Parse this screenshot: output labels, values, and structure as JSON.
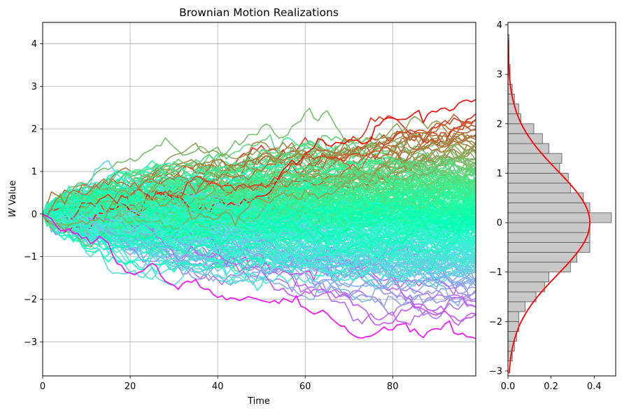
{
  "chart_data": [
    {
      "type": "line",
      "title": "Brownian Motion Realizations",
      "xlabel": "Time",
      "ylabel_italic": "W",
      "ylabel_rest": " Value",
      "xlim": [
        0,
        99
      ],
      "ylim": [
        -3.8,
        4.5
      ],
      "xticks": [
        0,
        20,
        40,
        60,
        80
      ],
      "xtick_labels": [
        "0",
        "20",
        "40",
        "60",
        "80"
      ],
      "yticks": [
        -3,
        -2,
        -1,
        0,
        1,
        2,
        3,
        4
      ],
      "ytick_labels": [
        "−3",
        "−2",
        "−1",
        "0",
        "1",
        "2",
        "3",
        "4"
      ],
      "grid": true,
      "colormap": "rainbow",
      "n_paths": 260,
      "n_steps": 100,
      "line_width": 1.6
    },
    {
      "type": "histogram",
      "orientation": "horizontal",
      "xlim": [
        0,
        0.5
      ],
      "ylim": [
        -3.1,
        4.05
      ],
      "xticks": [
        0.0,
        0.2,
        0.4
      ],
      "xtick_labels": [
        "0.0",
        "0.2",
        "0.4"
      ],
      "yticks": [
        -3,
        -2,
        -1,
        0,
        1,
        2,
        3,
        4
      ],
      "ytick_labels": [
        "−3",
        "−2",
        "−1",
        "0",
        "1",
        "2",
        "3",
        "4"
      ],
      "bin_edges": [
        -2.8,
        -2.6,
        -2.4,
        -2.2,
        -2.0,
        -1.8,
        -1.6,
        -1.4,
        -1.2,
        -1.0,
        -0.8,
        -0.6,
        -0.4,
        -0.2,
        0.0,
        0.2,
        0.4,
        0.6,
        0.8,
        1.0,
        1.2,
        1.4,
        1.6,
        1.8,
        2.0,
        2.2,
        2.4,
        2.6,
        2.8,
        3.0,
        3.2,
        3.4,
        3.6,
        3.8
      ],
      "densities": [
        0.02,
        0.03,
        0.04,
        0.05,
        0.05,
        0.08,
        0.13,
        0.17,
        0.19,
        0.29,
        0.32,
        0.38,
        0.38,
        0.38,
        0.48,
        0.38,
        0.35,
        0.29,
        0.28,
        0.24,
        0.25,
        0.19,
        0.16,
        0.12,
        0.06,
        0.05,
        0.03,
        0.02,
        0.01,
        0.01,
        0.005,
        0.005,
        0.005
      ],
      "bar_color": "#c8c8c8",
      "edge_color": "#555555",
      "normal_fit": {
        "mean": 0.0,
        "std": 1.05,
        "y_range": [
          -3.05,
          3.7
        ],
        "color": "#ff0000"
      }
    }
  ]
}
